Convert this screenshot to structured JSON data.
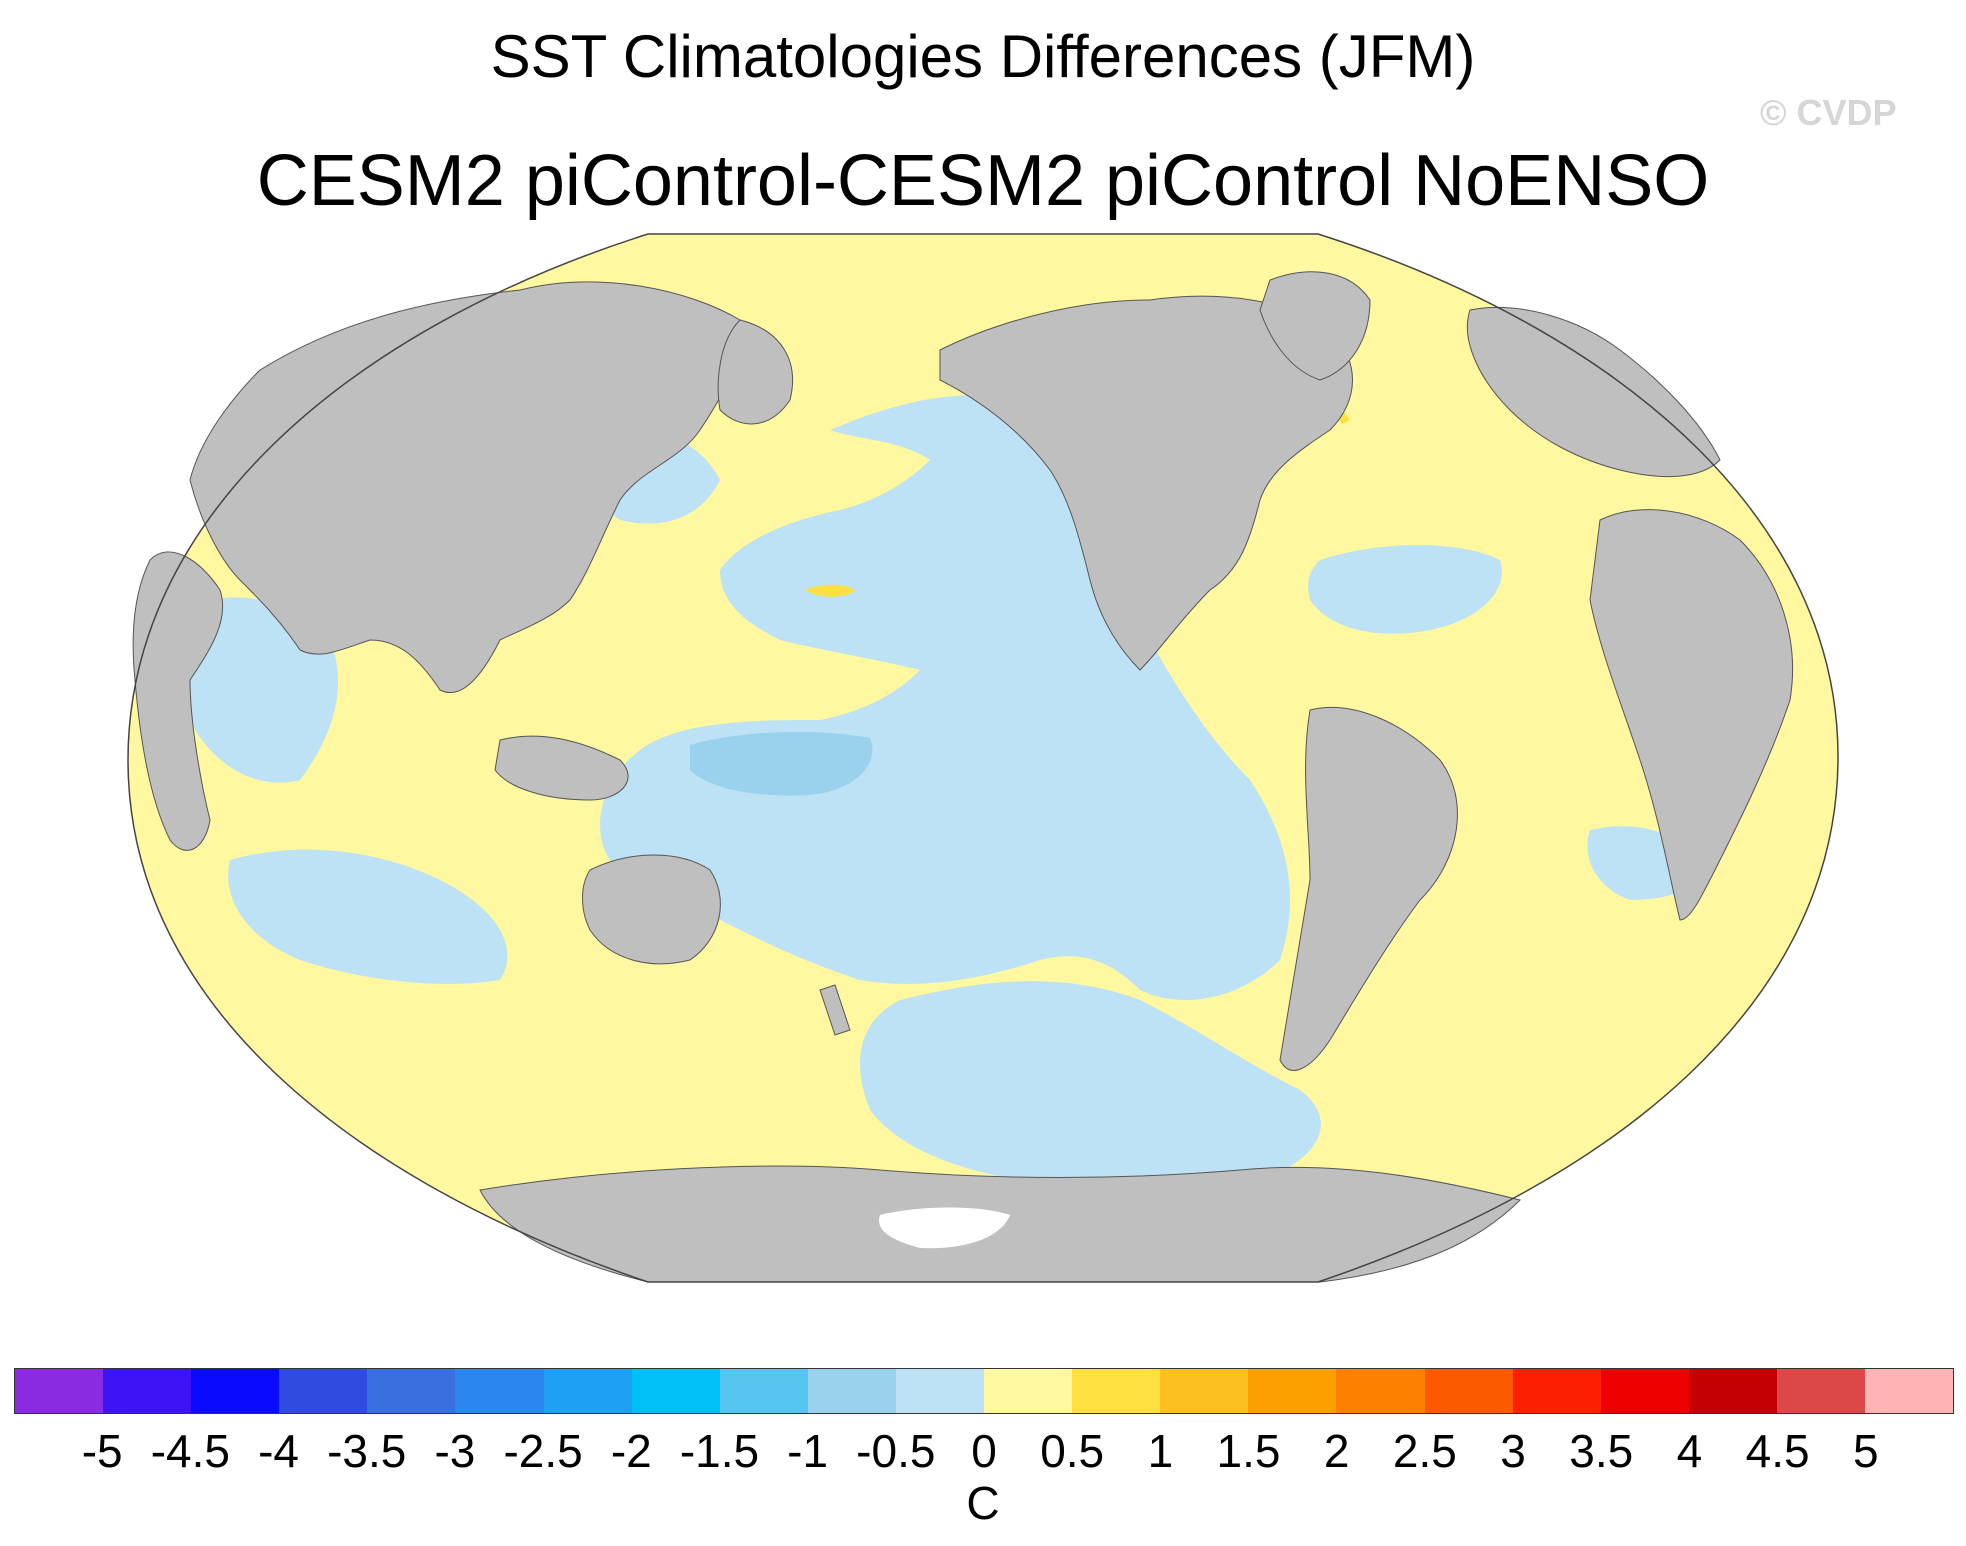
{
  "title": "SST Climatologies Differences (JFM)",
  "subtitle": "CESM2 piControl-CESM2 piControl NoENSO",
  "watermark": "© CVDP",
  "colorbar": {
    "unit": "C",
    "labels": [
      "-5",
      "-4.5",
      "-4",
      "-3.5",
      "-3",
      "-2.5",
      "-2",
      "-1.5",
      "-1",
      "-0.5",
      "0",
      "0.5",
      "1",
      "1.5",
      "2",
      "2.5",
      "3",
      "3.5",
      "4",
      "4.5",
      "5"
    ],
    "colors": [
      "#8a2be2",
      "#3c14f5",
      "#0a0aff",
      "#2f4be0",
      "#3a6fe0",
      "#2b86f0",
      "#1ea0f5",
      "#00c0f8",
      "#56c6f0",
      "#9ad2ee",
      "#bde2f5",
      "#fff8a0",
      "#ffe040",
      "#fcc020",
      "#fca000",
      "#fc8000",
      "#fc5a00",
      "#fc2000",
      "#ee0000",
      "#c40000",
      "#dc4848",
      "#ffb4b4"
    ]
  },
  "map": {
    "projection": "Robinson",
    "land_color": "#bfbfbf",
    "fill_colors": {
      "slight_warm": "#fff8a0",
      "slight_cool": "#bde2f5",
      "cool": "#9ad2ee",
      "warm": "#ffe040",
      "no_data": "#ffffff"
    }
  }
}
